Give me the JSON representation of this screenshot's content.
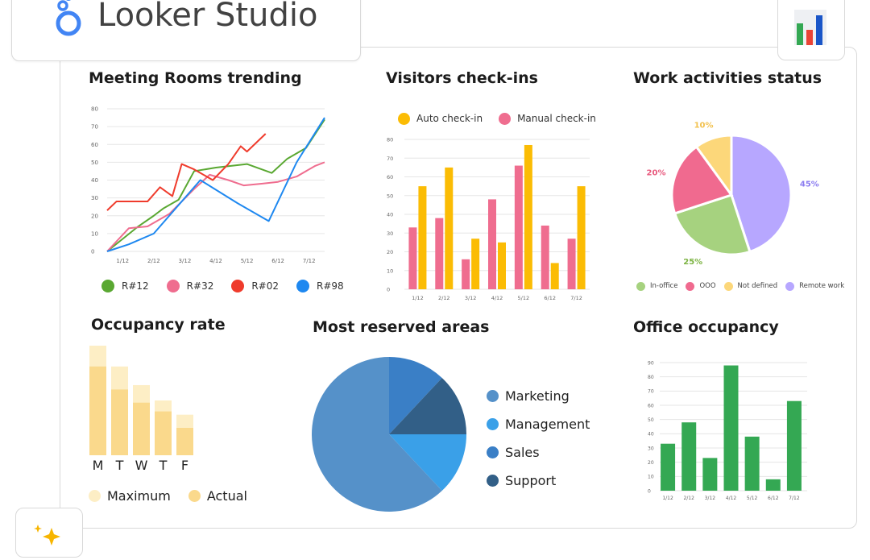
{
  "app": {
    "name": "Looker Studio"
  },
  "colors": {
    "green": "#5aa832",
    "pink": "#ef6d8f",
    "red": "#ef3b2c",
    "blue": "#1e88f0",
    "amber": "#fbbc04",
    "pie_purple": "#b7a7ff",
    "pie_green": "#a6d27f",
    "pie_pink": "#f06a8f",
    "pie_yellow": "#fcd77a",
    "office_green": "#34a853",
    "occ_max": "#fdeec5",
    "occ_actual": "#fad98c"
  },
  "icons": {
    "logo": "looker-studio-logo-icon",
    "corner": "bar-chart-icon",
    "sparkle": "sparkle-icon"
  },
  "panels": {
    "meeting_rooms": {
      "title": "Meeting Rooms trending"
    },
    "visitors": {
      "title": "Visitors check-ins"
    },
    "work_activities": {
      "title": "Work activities status"
    },
    "occupancy": {
      "title": "Occupancy rate"
    },
    "reserved": {
      "title": "Most reserved areas"
    },
    "office": {
      "title": "Office occupancy"
    }
  },
  "chart_data": [
    {
      "id": "meeting_rooms",
      "type": "line",
      "title": "Meeting Rooms trending",
      "x_ticks": [
        "1/12",
        "2/12",
        "3/12",
        "4/12",
        "5/12",
        "6/12",
        "7/12"
      ],
      "y_ticks": [
        0,
        10,
        20,
        30,
        40,
        50,
        60,
        70,
        80
      ],
      "ylim": [
        0,
        80
      ],
      "xlim": [
        0.5,
        7.5
      ],
      "series": [
        {
          "name": "R#12",
          "color": "#5aa832",
          "x": [
            0.5,
            1.5,
            2.0,
            2.3,
            2.8,
            3.3,
            4.0,
            5.0,
            5.8,
            6.3,
            6.9,
            7.5
          ],
          "y": [
            0,
            14,
            20,
            24,
            29,
            45,
            47,
            49,
            44,
            52,
            58,
            74
          ]
        },
        {
          "name": "R#32",
          "color": "#ef6d8f",
          "x": [
            0.5,
            1.2,
            1.8,
            2.5,
            3.3,
            3.8,
            4.4,
            4.9,
            5.5,
            6.0,
            6.6,
            7.2,
            7.5
          ],
          "y": [
            0,
            13,
            14,
            21,
            35,
            43,
            40,
            37,
            38,
            39,
            42,
            48,
            50
          ]
        },
        {
          "name": "R#02",
          "color": "#ef3b2c",
          "x": [
            0.5,
            0.8,
            1.2,
            1.8,
            2.2,
            2.6,
            2.9,
            3.3,
            3.9,
            4.4,
            4.8,
            5.0,
            5.6
          ],
          "y": [
            23,
            28,
            28,
            28,
            36,
            31,
            49,
            46,
            40,
            49,
            59,
            56,
            66
          ]
        },
        {
          "name": "R#98",
          "color": "#1e88f0",
          "x": [
            0.5,
            1.2,
            2.0,
            3.5,
            4.7,
            5.7,
            6.6,
            7.5
          ],
          "y": [
            0,
            4,
            10,
            40,
            27,
            17,
            50,
            75
          ]
        }
      ]
    },
    {
      "id": "visitors",
      "type": "bar",
      "title": "Visitors check-ins",
      "categories": [
        "1/12",
        "2/12",
        "3/12",
        "4/12",
        "5/12",
        "6/12",
        "7/12"
      ],
      "y_ticks": [
        0,
        10,
        20,
        30,
        40,
        50,
        60,
        70,
        80
      ],
      "ylim": [
        0,
        80
      ],
      "series": [
        {
          "name": "Manual check-in",
          "color": "#ef6d8f",
          "values": [
            33,
            38,
            16,
            48,
            66,
            34,
            27
          ]
        },
        {
          "name": "Auto check-in",
          "color": "#fbbc04",
          "values": [
            55,
            65,
            27,
            25,
            77,
            14,
            55
          ]
        }
      ]
    },
    {
      "id": "work_activities",
      "type": "pie",
      "title": "Work activities status",
      "slices": [
        {
          "name": "Remote work",
          "value": 45,
          "label": "45%",
          "color": "#b7a7ff"
        },
        {
          "name": "In-office",
          "value": 25,
          "label": "25%",
          "color": "#a6d27f"
        },
        {
          "name": "OOO",
          "value": 20,
          "label": "20%",
          "color": "#f06a8f"
        },
        {
          "name": "Not defined",
          "value": 10,
          "label": "10%",
          "color": "#fcd77a"
        }
      ],
      "legend": [
        "In-office",
        "OOO",
        "Not defined",
        "Remote work"
      ]
    },
    {
      "id": "occupancy",
      "type": "bar",
      "title": "Occupancy rate",
      "categories": [
        "M",
        "T",
        "W",
        "T",
        "F"
      ],
      "ylim": [
        0,
        100
      ],
      "series": [
        {
          "name": "Maximum",
          "color": "#fdeec5",
          "values": [
            100,
            81,
            64,
            50,
            37
          ]
        },
        {
          "name": "Actual",
          "color": "#fad98c",
          "values": [
            81,
            60,
            48,
            40,
            25
          ]
        }
      ]
    },
    {
      "id": "reserved",
      "type": "pie",
      "title": "Most reserved areas",
      "slices": [
        {
          "name": "Marketing",
          "value": 62,
          "color": "#5591c9"
        },
        {
          "name": "Management",
          "value": 13,
          "color": "#3aa0e8"
        },
        {
          "name": "Sales",
          "value": 12,
          "color": "#3a7fc6"
        },
        {
          "name": "Support",
          "value": 13,
          "color": "#325f87"
        }
      ]
    },
    {
      "id": "office",
      "type": "bar",
      "title": "Office occupancy",
      "categories": [
        "1/12",
        "2/12",
        "3/12",
        "4/12",
        "5/12",
        "6/12",
        "7/12"
      ],
      "y_ticks": [
        0,
        10,
        20,
        30,
        40,
        50,
        60,
        70,
        80,
        90
      ],
      "ylim": [
        0,
        90
      ],
      "series": [
        {
          "name": "",
          "color": "#34a853",
          "values": [
            33,
            48,
            23,
            88,
            38,
            8,
            63
          ]
        }
      ]
    }
  ]
}
